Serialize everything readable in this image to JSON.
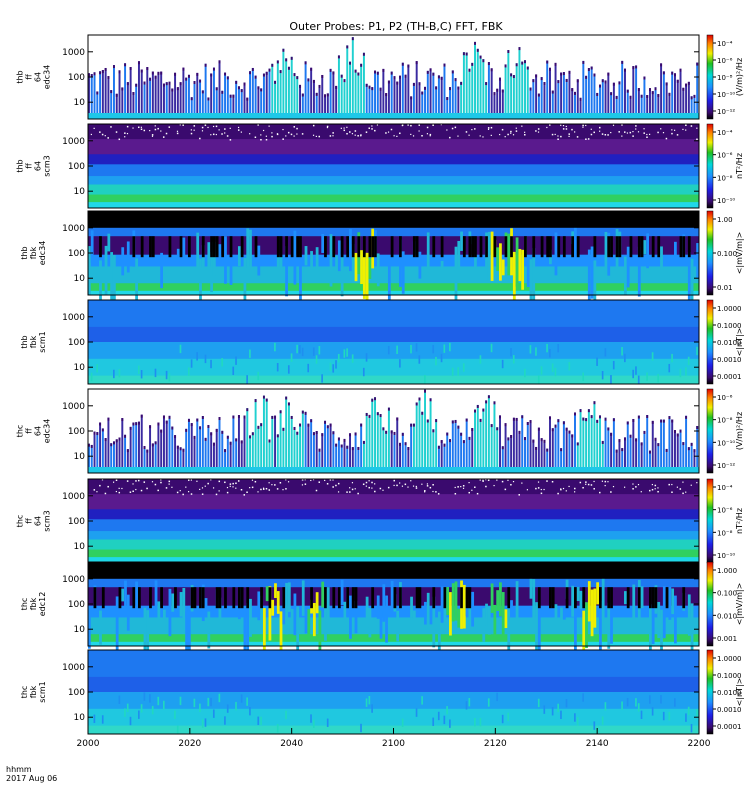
{
  "chart_data": {
    "type": "heatmap",
    "title": "Outer Probes: P1, P2 (TH-B,C) FFT, FBK",
    "time_label": "hhmm",
    "date_label": "2017 Aug 06",
    "x_ticks": [
      "2000",
      "2020",
      "2040",
      "2100",
      "2120",
      "2140",
      "2200"
    ],
    "panels": [
      {
        "name": "thb ff 64 edc34",
        "ylabel": [
          "thb",
          "ff",
          "64",
          "edc34"
        ],
        "yticks": [
          "1000",
          "100",
          "10"
        ],
        "cbar_label": "(V/m)²/Hz",
        "cbar_ticks": [
          "10⁻⁴",
          "10⁻⁶",
          "10⁻⁸",
          "10⁻¹⁰",
          "10⁻¹²"
        ],
        "pattern": "sparse",
        "bursts": [
          0.32,
          0.43,
          0.63,
          0.7
        ]
      },
      {
        "name": "thb ff 64 scm3",
        "ylabel": [
          "thb",
          "ff",
          "64",
          "scm3"
        ],
        "yticks": [
          "1000",
          "100",
          "10"
        ],
        "cbar_label": "nT²/Hz",
        "cbar_ticks": [
          "10⁻⁴",
          "10⁻⁶",
          "10⁻⁸",
          "10⁻¹⁰"
        ],
        "pattern": "scm",
        "bursts": []
      },
      {
        "name": "thb fbk edc34",
        "ylabel": [
          "thb",
          "fbk",
          "edc34"
        ],
        "yticks": [
          "1000",
          "100",
          "10"
        ],
        "cbar_label": "<|mV/m|>",
        "cbar_ticks": [
          "1.00",
          "0.100",
          "0.01"
        ],
        "pattern": "fbk_e",
        "bursts": [
          0.45,
          0.67,
          0.7
        ]
      },
      {
        "name": "thb fbk scm1",
        "ylabel": [
          "thb",
          "fbk",
          "scm1"
        ],
        "yticks": [
          "1000",
          "100",
          "10"
        ],
        "cbar_label": "<|nT|>",
        "cbar_ticks": [
          "1.0000",
          "0.1000",
          "0.0100",
          "0.0010",
          "0.0001"
        ],
        "pattern": "fbk_b",
        "bursts": []
      },
      {
        "name": "thc ff 64 edc34",
        "ylabel": [
          "thc",
          "ff",
          "64",
          "edc34"
        ],
        "yticks": [
          "1000",
          "100",
          "10"
        ],
        "cbar_label": "(V/m)²/Hz",
        "cbar_ticks": [
          "10⁻⁶",
          "10⁻⁸",
          "10⁻¹⁰",
          "10⁻¹²"
        ],
        "pattern": "sparse",
        "bursts": [
          0.28,
          0.33,
          0.47,
          0.55,
          0.65,
          0.82
        ]
      },
      {
        "name": "thc ff 64 scm3",
        "ylabel": [
          "thc",
          "ff",
          "64",
          "scm3"
        ],
        "yticks": [
          "1000",
          "100",
          "10"
        ],
        "cbar_label": "nT²/Hz",
        "cbar_ticks": [
          "10⁻⁴",
          "10⁻⁶",
          "10⁻⁸",
          "10⁻¹⁰"
        ],
        "pattern": "scm",
        "bursts": []
      },
      {
        "name": "thc fbk edc12",
        "ylabel": [
          "thc",
          "fbk",
          "edc12"
        ],
        "yticks": [
          "1000",
          "100",
          "10"
        ],
        "cbar_label": "<|mV/m|>",
        "cbar_ticks": [
          "1.000",
          "0.100",
          "0.010",
          "0.001"
        ],
        "pattern": "fbk_e",
        "bursts": [
          0.3,
          0.37,
          0.6,
          0.67,
          0.82
        ]
      },
      {
        "name": "thc fbk scm1",
        "ylabel": [
          "thc",
          "fbk",
          "scm1"
        ],
        "yticks": [
          "1000",
          "100",
          "10"
        ],
        "cbar_label": "<|nT|>",
        "cbar_ticks": [
          "1.0000",
          "0.1000",
          "0.0100",
          "0.0010",
          "0.0001"
        ],
        "pattern": "fbk_b",
        "bursts": []
      }
    ]
  }
}
